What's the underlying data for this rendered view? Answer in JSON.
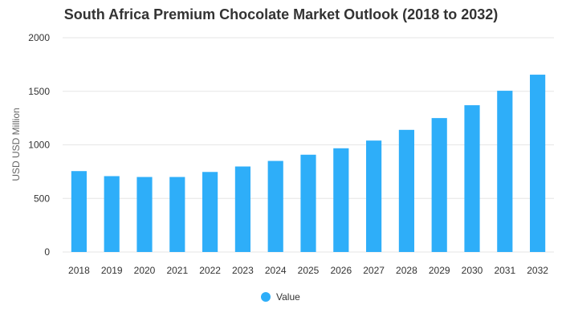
{
  "chart_data": {
    "type": "bar",
    "title": "South Africa Premium Chocolate Market Outlook (2018 to 2032)",
    "xlabel": "",
    "ylabel": "USD USD Million",
    "ylim": [
      0,
      2000
    ],
    "yticks": [
      0,
      500,
      1000,
      1500,
      2000
    ],
    "grid": true,
    "legend_position": "bottom",
    "bar_color": "#2EAEF9",
    "grid_color": "#E6E6E6",
    "categories": [
      "2018",
      "2019",
      "2020",
      "2021",
      "2022",
      "2023",
      "2024",
      "2025",
      "2026",
      "2027",
      "2028",
      "2029",
      "2030",
      "2031",
      "2032"
    ],
    "series": [
      {
        "name": "Value",
        "values": [
          755,
          708,
          700,
          700,
          747,
          798,
          850,
          908,
          968,
          1040,
          1140,
          1250,
          1370,
          1505,
          1655
        ]
      }
    ]
  }
}
